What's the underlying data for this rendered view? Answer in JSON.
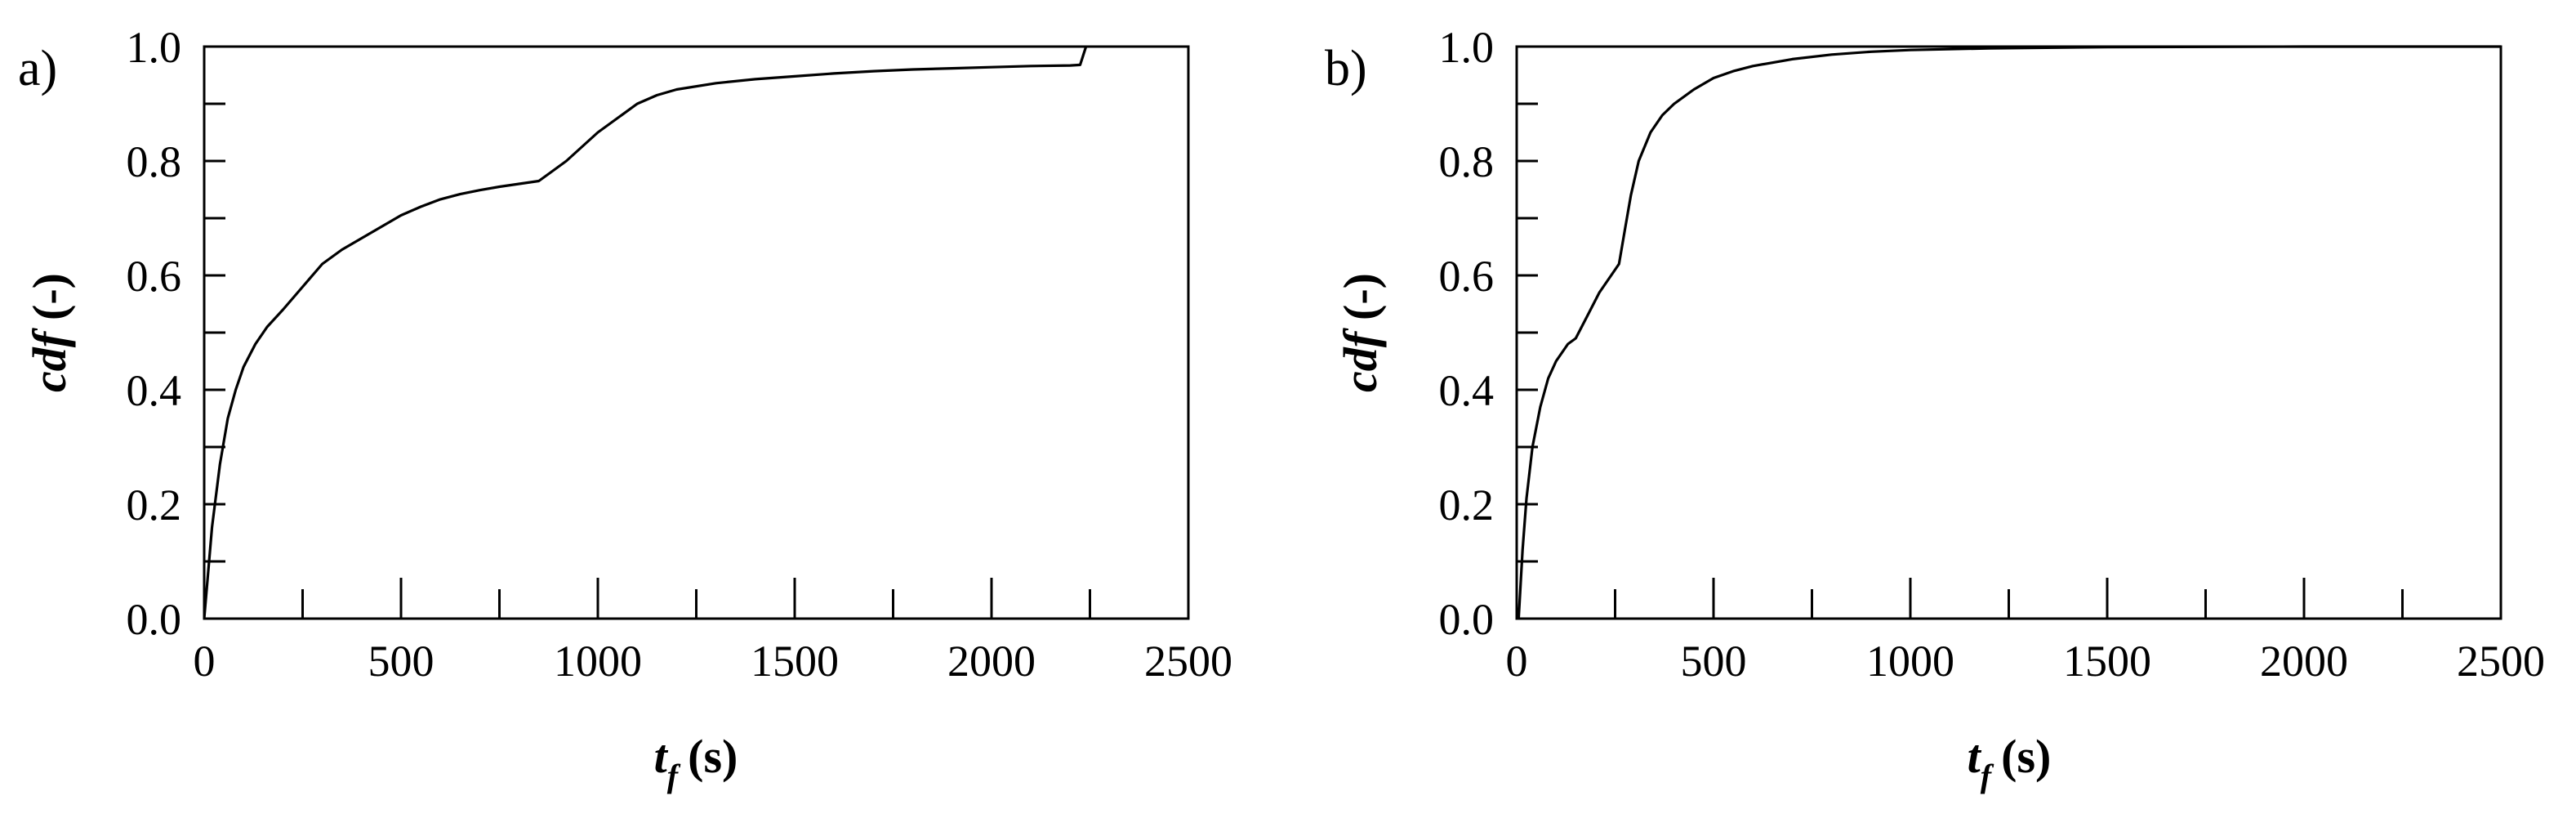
{
  "figure": {
    "panels": [
      {
        "label": "a)",
        "ylabel_main": "cdf",
        "ylabel_unit": "(-)",
        "xlabel_main": "t",
        "xlabel_sub": "f",
        "xlabel_unit": "(s)"
      },
      {
        "label": "b)",
        "ylabel_main": "cdf",
        "ylabel_unit": "(-)",
        "xlabel_main": "t",
        "xlabel_sub": "f",
        "xlabel_unit": "(s)"
      }
    ]
  },
  "chart_data": [
    {
      "type": "line",
      "panel_label": "a)",
      "title": "",
      "xlabel": "t_f (s)",
      "ylabel": "cdf (-)",
      "xlim": [
        0,
        2500
      ],
      "ylim": [
        0,
        1
      ],
      "xticks": [
        0,
        500,
        1000,
        1500,
        2000,
        2500
      ],
      "xtick_labels": [
        "0",
        "500",
        "1000",
        "1500",
        "2000",
        "2500"
      ],
      "yticks": [
        0,
        0.2,
        0.4,
        0.6,
        0.8,
        1.0
      ],
      "ytick_labels": [
        "0.0",
        "0.2",
        "0.4",
        "0.6",
        "0.8",
        "1.0"
      ],
      "grid": false,
      "line_color": "#000000",
      "series": [
        {
          "x": [
            0,
            20,
            40,
            60,
            80,
            100,
            130,
            160,
            200,
            250,
            300,
            350,
            400,
            450,
            500,
            550,
            600,
            650,
            700,
            750,
            800,
            850,
            880,
            920,
            960,
            1000,
            1050,
            1100,
            1150,
            1200,
            1300,
            1400,
            1500,
            1600,
            1700,
            1800,
            1900,
            2000,
            2100,
            2200,
            2225,
            2240
          ],
          "y": [
            0.0,
            0.16,
            0.27,
            0.35,
            0.4,
            0.44,
            0.48,
            0.51,
            0.54,
            0.58,
            0.62,
            0.645,
            0.665,
            0.685,
            0.705,
            0.72,
            0.733,
            0.742,
            0.749,
            0.755,
            0.76,
            0.765,
            0.78,
            0.8,
            0.825,
            0.85,
            0.875,
            0.9,
            0.915,
            0.925,
            0.936,
            0.943,
            0.948,
            0.953,
            0.957,
            0.96,
            0.962,
            0.964,
            0.966,
            0.967,
            0.968,
            1.0
          ]
        }
      ]
    },
    {
      "type": "line",
      "panel_label": "b)",
      "title": "",
      "xlabel": "t_f (s)",
      "ylabel": "cdf (-)",
      "xlim": [
        0,
        2500
      ],
      "ylim": [
        0,
        1
      ],
      "xticks": [
        0,
        500,
        1000,
        1500,
        2000,
        2500
      ],
      "xtick_labels": [
        "0",
        "500",
        "1000",
        "1500",
        "2000",
        "2500"
      ],
      "yticks": [
        0,
        0.2,
        0.4,
        0.6,
        0.8,
        1.0
      ],
      "ytick_labels": [
        "0.0",
        "0.2",
        "0.4",
        "0.6",
        "0.8",
        "1.0"
      ],
      "grid": false,
      "line_color": "#000000",
      "series": [
        {
          "x": [
            5,
            15,
            25,
            40,
            60,
            80,
            100,
            130,
            150,
            180,
            210,
            250,
            260,
            275,
            290,
            310,
            340,
            370,
            400,
            450,
            500,
            550,
            600,
            700,
            800,
            900,
            1000,
            1200,
            1500,
            2000,
            2500
          ],
          "y": [
            0.0,
            0.12,
            0.21,
            0.3,
            0.37,
            0.42,
            0.45,
            0.48,
            0.49,
            0.53,
            0.57,
            0.61,
            0.62,
            0.68,
            0.74,
            0.8,
            0.85,
            0.88,
            0.9,
            0.925,
            0.945,
            0.957,
            0.966,
            0.978,
            0.986,
            0.991,
            0.994,
            0.997,
            0.999,
            1.0,
            1.0
          ]
        }
      ]
    }
  ]
}
